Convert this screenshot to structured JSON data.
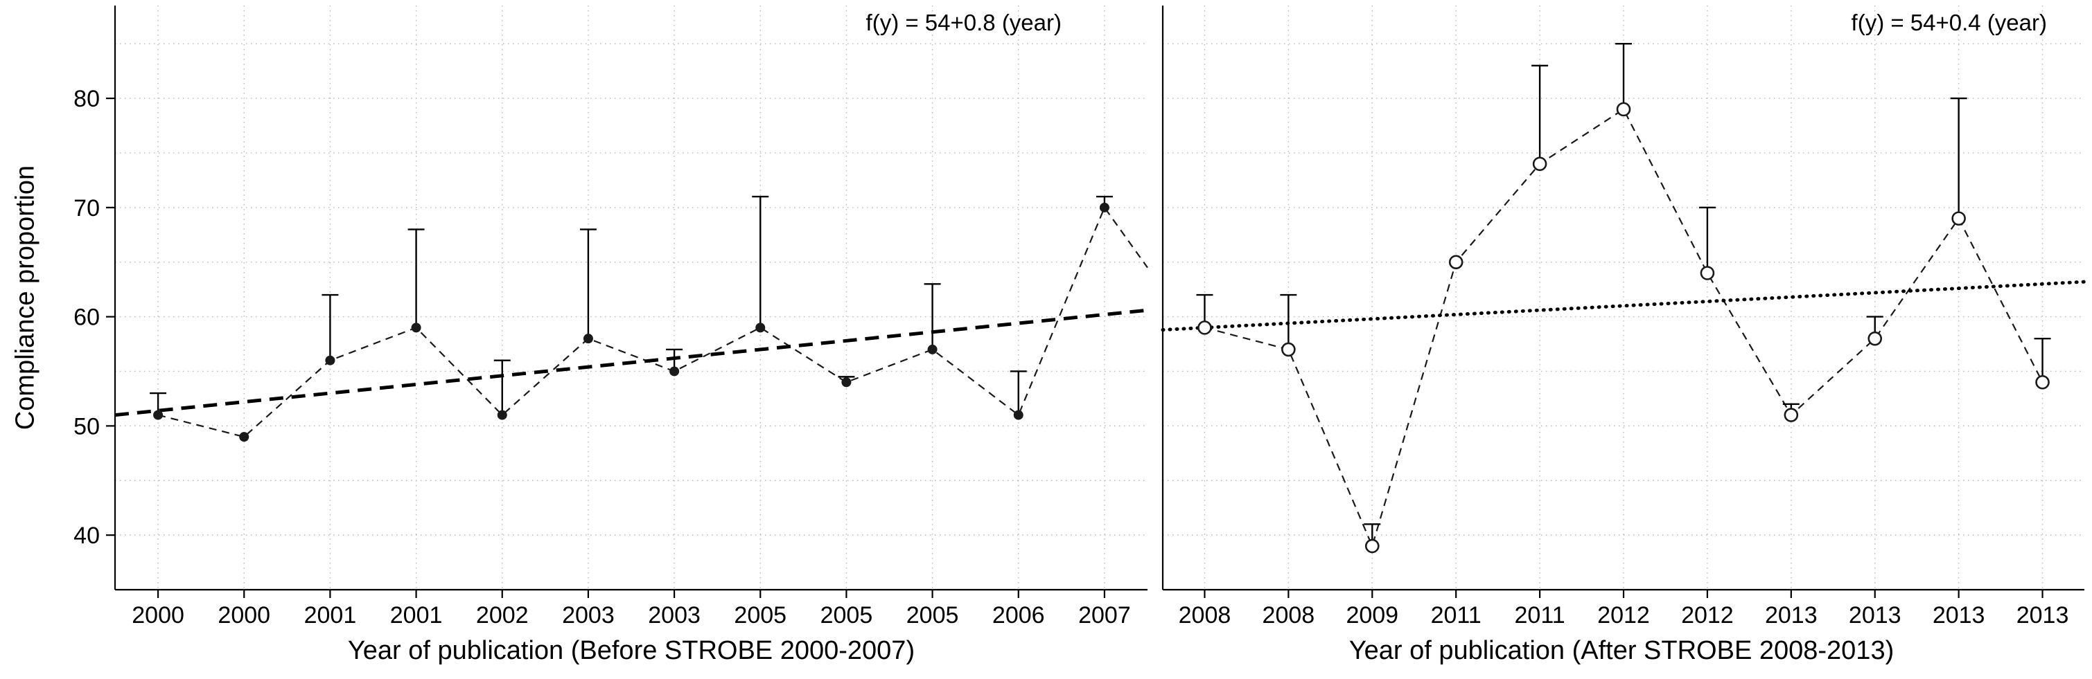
{
  "style": {
    "background": "#ffffff",
    "axis_color": "#000000",
    "grid_color": "#b8b8b8",
    "line_color": "#1a1a1a",
    "text_color": "#000000"
  },
  "figure": {
    "ylabel": "Compliance proportion"
  },
  "chart_data": [
    {
      "type": "line",
      "panel": "Before STROBE",
      "annotation": "f(y) = 54+0.8 (year)",
      "xlabel": "Year of publication (Before STROBE 2000-2007)",
      "ylabel": "Compliance proportion",
      "ylim": [
        35,
        88.5
      ],
      "yticks": [
        40,
        50,
        60,
        70,
        80
      ],
      "grid": "dotted",
      "legend": "none",
      "categories": [
        "2000",
        "2000",
        "2001",
        "2001",
        "2002",
        "2003",
        "2003",
        "2005",
        "2005",
        "2005",
        "2006",
        "2007"
      ],
      "series": [
        {
          "name": "Compliance proportion (point estimate)",
          "marker": "filled-circle",
          "line_style": "dashed",
          "values": [
            51,
            49,
            56,
            59,
            51,
            58,
            55,
            59,
            54,
            57,
            51,
            70
          ],
          "upper_ci": [
            53,
            49,
            62,
            68,
            56,
            68,
            57,
            71,
            54.5,
            63,
            55,
            71
          ],
          "line_tail_value": 64.5
        }
      ],
      "trend": {
        "style": "dashed-bold",
        "start": 51.0,
        "end": 60.6,
        "equation": "f(y) = 54+0.8 (year)"
      }
    },
    {
      "type": "line",
      "panel": "After STROBE",
      "annotation": "f(y) = 54+0.4 (year)",
      "xlabel": "Year of publication (After STROBE 2008-2013)",
      "ylabel": "Compliance proportion",
      "ylim": [
        35,
        88.5
      ],
      "yticks": [
        40,
        50,
        60,
        70,
        80
      ],
      "grid": "dotted",
      "legend": "none",
      "categories": [
        "2008",
        "2008",
        "2009",
        "2011",
        "2011",
        "2012",
        "2012",
        "2013",
        "2013",
        "2013",
        "2013"
      ],
      "series": [
        {
          "name": "Compliance proportion (point estimate)",
          "marker": "open-circle",
          "line_style": "dashed",
          "values": [
            59,
            57,
            39,
            65,
            74,
            79,
            64,
            51,
            58,
            69,
            54
          ],
          "upper_ci": [
            62,
            62,
            41,
            65,
            83,
            85,
            70,
            52,
            60,
            80,
            58
          ],
          "line_tail_value": null
        }
      ],
      "trend": {
        "style": "dotted-bold",
        "start": 58.8,
        "end": 63.2,
        "equation": "f(y) = 54+0.4 (year)"
      }
    }
  ]
}
